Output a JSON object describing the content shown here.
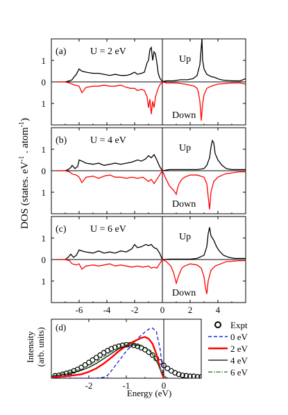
{
  "figure": {
    "ylabel_dos": "DOS (states. eV",
    "ylabel_dos_sup1": "-1",
    "ylabel_dos_mid": " . atom",
    "ylabel_dos_sup2": "-1",
    "ylabel_dos_end": ")",
    "ylabel_int_1": "Intensity",
    "ylabel_int_2": "(arb. units)",
    "xlabel": "Energy (eV)"
  },
  "colors": {
    "up": "#000000",
    "down": "#ff0000",
    "zero_ev": "#1f2bd8",
    "two_ev": "#ff0000",
    "four_ev": "#000000",
    "six_ev": "#2e8b2e",
    "expt": "#000000"
  },
  "chart_data": [
    {
      "type": "line",
      "panel": "(a)",
      "label": "U = 2 eV",
      "xlim": [
        -8,
        6
      ],
      "ylim": [
        -2,
        2
      ],
      "xticks": [
        -6,
        -4,
        -2,
        0,
        2,
        4
      ],
      "yticks": [
        {
          "v": 1,
          "label": "1"
        },
        {
          "v": 0,
          "label": "0"
        },
        {
          "v": -1,
          "label": "1"
        }
      ],
      "annotations": [
        "Up",
        "Down"
      ],
      "series": [
        {
          "name": "Up",
          "x": [
            -7.6,
            -7.0,
            -6.7,
            -6.5,
            -6.4,
            -6.2,
            -6.0,
            -5.8,
            -5.5,
            -5.0,
            -4.6,
            -4.2,
            -3.8,
            -3.4,
            -3.0,
            -2.6,
            -2.3,
            -2.0,
            -1.8,
            -1.5,
            -1.3,
            -1.1,
            -1.0,
            -0.9,
            -0.8,
            -0.7,
            -0.6,
            -0.5,
            -0.4,
            -0.3,
            -0.2,
            -0.1,
            0.0,
            0.3,
            0.8,
            1.3,
            1.8,
            2.2,
            2.5,
            2.7,
            2.8,
            2.85,
            2.9,
            3.0,
            3.2,
            3.5,
            3.8,
            4.1,
            4.4,
            4.8,
            5.2,
            5.6,
            6.0
          ],
          "y": [
            0,
            0,
            0.05,
            0.1,
            0.2,
            0.35,
            0.6,
            0.5,
            0.45,
            0.4,
            0.4,
            0.35,
            0.3,
            0.35,
            0.3,
            0.3,
            0.35,
            0.45,
            0.35,
            0.4,
            0.45,
            0.9,
            1.0,
            1.5,
            1.6,
            1.0,
            1.4,
            1.3,
            0.9,
            0.4,
            0.2,
            0.1,
            0.02,
            0.05,
            0.05,
            0.1,
            0.1,
            0.15,
            0.3,
            0.8,
            1.6,
            2.0,
            1.0,
            0.6,
            0.35,
            0.25,
            0.2,
            0.12,
            0.08,
            0.06,
            0.05,
            0.05,
            0.15
          ]
        },
        {
          "name": "Down",
          "x": [
            -7.6,
            -7.0,
            -6.7,
            -6.5,
            -6.3,
            -6.0,
            -5.8,
            -5.5,
            -5.0,
            -4.6,
            -4.2,
            -3.8,
            -3.4,
            -3.0,
            -2.6,
            -2.3,
            -2.0,
            -1.8,
            -1.5,
            -1.3,
            -1.1,
            -1.0,
            -0.9,
            -0.8,
            -0.7,
            -0.6,
            -0.5,
            -0.4,
            -0.3,
            -0.2,
            0.0,
            0.3,
            1.0,
            1.6,
            2.0,
            2.3,
            2.5,
            2.6,
            2.7,
            2.75,
            2.8,
            2.9,
            3.0,
            3.2,
            3.5,
            4.0,
            4.5,
            5.0,
            5.6,
            6.0
          ],
          "y": [
            0,
            0,
            -0.05,
            -0.1,
            -0.15,
            -0.2,
            -0.5,
            -0.25,
            -0.2,
            -0.2,
            -0.15,
            -0.2,
            -0.2,
            -0.15,
            -0.25,
            -0.3,
            -0.3,
            -0.4,
            -0.35,
            -0.4,
            -0.7,
            -1.2,
            -0.8,
            -1.5,
            -0.9,
            -1.2,
            -0.7,
            -0.5,
            -0.3,
            -0.15,
            0,
            -0.05,
            -0.05,
            -0.1,
            -0.15,
            -0.2,
            -0.3,
            -0.5,
            -0.9,
            -1.3,
            -1.8,
            -1.0,
            -0.6,
            -0.3,
            -0.2,
            -0.1,
            -0.08,
            -0.05,
            -0.05,
            -0.1
          ]
        }
      ]
    },
    {
      "type": "line",
      "panel": "(b)",
      "label": "U = 4 eV",
      "xlim": [
        -8,
        6
      ],
      "ylim": [
        -2,
        2
      ],
      "xticks": [
        -6,
        -4,
        -2,
        0,
        2,
        4
      ],
      "yticks": [
        {
          "v": 1,
          "label": "1"
        },
        {
          "v": 0,
          "label": "0"
        },
        {
          "v": -1,
          "label": "1"
        }
      ],
      "annotations": [
        "Up",
        "Down"
      ],
      "series": [
        {
          "name": "Up",
          "x": [
            -7.6,
            -7.0,
            -6.8,
            -6.6,
            -6.5,
            -6.3,
            -6.1,
            -6.0,
            -5.8,
            -5.5,
            -5.0,
            -4.6,
            -4.2,
            -3.8,
            -3.4,
            -3.0,
            -2.6,
            -2.2,
            -2.0,
            -1.8,
            -1.5,
            -1.2,
            -1.0,
            -0.8,
            -0.6,
            -0.4,
            -0.2,
            0.0,
            0.5,
            1.0,
            1.5,
            2.0,
            2.5,
            3.0,
            3.2,
            3.4,
            3.5,
            3.6,
            3.7,
            3.8,
            4.0,
            4.3,
            4.6,
            5.0,
            5.5,
            6.0
          ],
          "y": [
            0,
            0,
            0.05,
            0.15,
            0.25,
            0.1,
            0.2,
            0.5,
            0.45,
            0.35,
            0.3,
            0.35,
            0.25,
            0.3,
            0.35,
            0.3,
            0.35,
            0.4,
            0.45,
            0.5,
            0.45,
            0.55,
            0.7,
            0.6,
            0.75,
            0.5,
            0.2,
            0.0,
            0.05,
            0.05,
            0.05,
            0.05,
            0.05,
            0.1,
            0.25,
            0.6,
            1.1,
            1.4,
            1.3,
            0.8,
            0.5,
            0.25,
            0.1,
            0.05,
            0.05,
            0.05
          ]
        },
        {
          "name": "Down",
          "x": [
            -7.6,
            -7.0,
            -6.7,
            -6.5,
            -6.2,
            -6.0,
            -5.8,
            -5.5,
            -5.0,
            -4.6,
            -4.2,
            -3.8,
            -3.4,
            -3.0,
            -2.6,
            -2.2,
            -1.8,
            -1.4,
            -1.0,
            -0.8,
            -0.6,
            -0.4,
            -0.2,
            0.0,
            0.2,
            0.5,
            0.8,
            1.0,
            1.1,
            1.2,
            1.4,
            1.6,
            2.0,
            2.5,
            3.0,
            3.2,
            3.3,
            3.4,
            3.5,
            3.7,
            4.0,
            4.5,
            5.0,
            5.5,
            6.0
          ],
          "y": [
            0,
            0,
            -0.05,
            -0.15,
            -0.2,
            -0.3,
            -0.55,
            -0.3,
            -0.25,
            -0.35,
            -0.25,
            -0.2,
            -0.3,
            -0.3,
            -0.35,
            -0.3,
            -0.35,
            -0.3,
            -0.5,
            -0.4,
            -0.6,
            -0.4,
            -0.2,
            0,
            -0.3,
            -0.7,
            -0.9,
            -1.1,
            -0.8,
            -0.6,
            -0.4,
            -0.3,
            -0.2,
            -0.2,
            -0.3,
            -0.6,
            -1.2,
            -1.8,
            -1.0,
            -0.5,
            -0.3,
            -0.15,
            -0.1,
            -0.05,
            -0.05
          ]
        }
      ]
    },
    {
      "type": "line",
      "panel": "(c)",
      "label": "U = 6 eV",
      "xlim": [
        -8,
        6
      ],
      "ylim": [
        -2,
        2
      ],
      "xticks": [
        -6,
        -4,
        -2,
        0,
        2,
        4
      ],
      "yticks": [
        {
          "v": 1,
          "label": "1"
        },
        {
          "v": 0,
          "label": "0"
        },
        {
          "v": -1,
          "label": "1"
        }
      ],
      "annotations": [
        "Up",
        "Down"
      ],
      "series": [
        {
          "name": "Up",
          "x": [
            -7.6,
            -7.0,
            -6.8,
            -6.6,
            -6.4,
            -6.2,
            -6.0,
            -5.8,
            -5.5,
            -5.0,
            -4.6,
            -4.2,
            -3.8,
            -3.4,
            -3.0,
            -2.6,
            -2.2,
            -2.0,
            -1.8,
            -1.5,
            -1.2,
            -1.0,
            -0.8,
            -0.6,
            -0.4,
            -0.2,
            0.0,
            0.5,
            1.0,
            1.5,
            2.0,
            2.5,
            3.0,
            3.2,
            3.3,
            3.4,
            3.5,
            3.7,
            3.9,
            4.1,
            4.4,
            4.8,
            5.2,
            5.6,
            6.0
          ],
          "y": [
            0,
            0,
            0.1,
            0.25,
            0.1,
            0.2,
            0.45,
            0.4,
            0.35,
            0.3,
            0.4,
            0.3,
            0.35,
            0.3,
            0.4,
            0.35,
            0.5,
            0.7,
            0.55,
            0.6,
            0.7,
            0.65,
            0.7,
            0.55,
            0.5,
            0.3,
            0.0,
            0.02,
            0.02,
            0.02,
            0.02,
            0.05,
            0.2,
            0.6,
            1.2,
            1.5,
            1.1,
            0.9,
            0.6,
            0.4,
            0.2,
            0.1,
            0.05,
            0.05,
            0.05
          ]
        },
        {
          "name": "Down",
          "x": [
            -7.6,
            -7.0,
            -6.7,
            -6.5,
            -6.2,
            -6.0,
            -5.8,
            -5.5,
            -5.0,
            -4.6,
            -4.2,
            -3.8,
            -3.4,
            -3.0,
            -2.6,
            -2.2,
            -1.8,
            -1.4,
            -1.0,
            -0.8,
            -0.6,
            -0.4,
            -0.2,
            0.0,
            0.3,
            0.6,
            0.8,
            1.0,
            1.2,
            1.4,
            1.6,
            2.0,
            2.5,
            2.8,
            3.0,
            3.1,
            3.2,
            3.3,
            3.5,
            3.8,
            4.2,
            4.6,
            5.0,
            5.5,
            6.0
          ],
          "y": [
            0,
            0,
            -0.05,
            -0.2,
            -0.25,
            -0.2,
            -0.45,
            -0.3,
            -0.25,
            -0.3,
            -0.25,
            -0.2,
            -0.3,
            -0.25,
            -0.3,
            -0.35,
            -0.3,
            -0.35,
            -0.3,
            -0.4,
            -0.35,
            -0.4,
            -0.2,
            0,
            -0.1,
            -0.3,
            -0.6,
            -1.1,
            -0.7,
            -0.4,
            -0.3,
            -0.2,
            -0.25,
            -0.4,
            -0.8,
            -1.3,
            -1.6,
            -1.0,
            -0.5,
            -0.3,
            -0.2,
            -0.1,
            -0.08,
            -0.05,
            -0.05
          ]
        }
      ]
    },
    {
      "type": "line",
      "panel": "(d)",
      "xlim": [
        -3,
        1
      ],
      "ylim": [
        0,
        1.2
      ],
      "xticks": [
        -2,
        -1,
        0
      ],
      "legend": "right",
      "series": [
        {
          "name": "Expt",
          "style": "circles",
          "x": [
            -2.9,
            -2.8,
            -2.7,
            -2.6,
            -2.5,
            -2.4,
            -2.3,
            -2.2,
            -2.1,
            -2.0,
            -1.9,
            -1.8,
            -1.7,
            -1.6,
            -1.5,
            -1.4,
            -1.3,
            -1.2,
            -1.1,
            -1.0,
            -0.9,
            -0.8,
            -0.7,
            -0.6,
            -0.5,
            -0.4,
            -0.3,
            -0.2,
            -0.1,
            0.0,
            0.1,
            0.2,
            0.3,
            0.4,
            0.5,
            0.6,
            0.7,
            0.8,
            0.9,
            1.0
          ],
          "y": [
            0.05,
            0.06,
            0.08,
            0.1,
            0.12,
            0.15,
            0.18,
            0.22,
            0.27,
            0.32,
            0.37,
            0.42,
            0.47,
            0.52,
            0.56,
            0.6,
            0.63,
            0.65,
            0.67,
            0.68,
            0.68,
            0.67,
            0.65,
            0.62,
            0.58,
            0.53,
            0.47,
            0.4,
            0.33,
            0.26,
            0.2,
            0.15,
            0.11,
            0.08,
            0.06,
            0.05,
            0.04,
            0.04,
            0.03,
            0.03
          ]
        },
        {
          "name": "0 eV",
          "style": "dashed",
          "x": [
            -3.0,
            -2.5,
            -2.0,
            -1.8,
            -1.6,
            -1.5,
            -1.4,
            -1.2,
            -1.0,
            -0.8,
            -0.6,
            -0.4,
            -0.3,
            -0.2,
            -0.1,
            0.0,
            0.1
          ],
          "y": [
            0.0,
            0.0,
            0.0,
            0.0,
            0.02,
            0.06,
            0.15,
            0.35,
            0.55,
            0.72,
            0.88,
            1.0,
            1.02,
            0.95,
            0.6,
            0.0,
            0.0
          ]
        },
        {
          "name": "2 eV",
          "style": "solid",
          "x": [
            -3.0,
            -2.6,
            -2.2,
            -2.0,
            -1.8,
            -1.6,
            -1.4,
            -1.2,
            -1.0,
            -0.8,
            -0.6,
            -0.5,
            -0.4,
            -0.3,
            -0.2,
            -0.1,
            0.0,
            0.1
          ],
          "y": [
            0.02,
            0.04,
            0.08,
            0.13,
            0.2,
            0.3,
            0.42,
            0.55,
            0.66,
            0.75,
            0.82,
            0.84,
            0.8,
            0.7,
            0.5,
            0.2,
            0.0,
            0.0
          ]
        },
        {
          "name": "4 eV",
          "style": "solid",
          "x": [
            -3.0,
            -2.6,
            -2.2,
            -2.0,
            -1.8,
            -1.6,
            -1.4,
            -1.2,
            -1.0,
            -0.8,
            -0.6,
            -0.4,
            -0.3,
            -0.2,
            -0.1,
            0.0,
            0.1
          ],
          "y": [
            0.04,
            0.08,
            0.16,
            0.22,
            0.3,
            0.4,
            0.5,
            0.6,
            0.66,
            0.68,
            0.66,
            0.58,
            0.48,
            0.36,
            0.2,
            0.05,
            0.0
          ]
        },
        {
          "name": "6 eV",
          "style": "dash-dot",
          "x": [
            -3.0,
            -2.6,
            -2.2,
            -2.0,
            -1.8,
            -1.6,
            -1.4,
            -1.2,
            -1.0,
            -0.8,
            -0.6,
            -0.4,
            -0.3,
            -0.2,
            -0.1,
            0.0,
            0.1
          ],
          "y": [
            0.05,
            0.1,
            0.19,
            0.26,
            0.34,
            0.44,
            0.54,
            0.62,
            0.68,
            0.7,
            0.67,
            0.58,
            0.48,
            0.35,
            0.2,
            0.05,
            0.0
          ]
        }
      ]
    }
  ]
}
